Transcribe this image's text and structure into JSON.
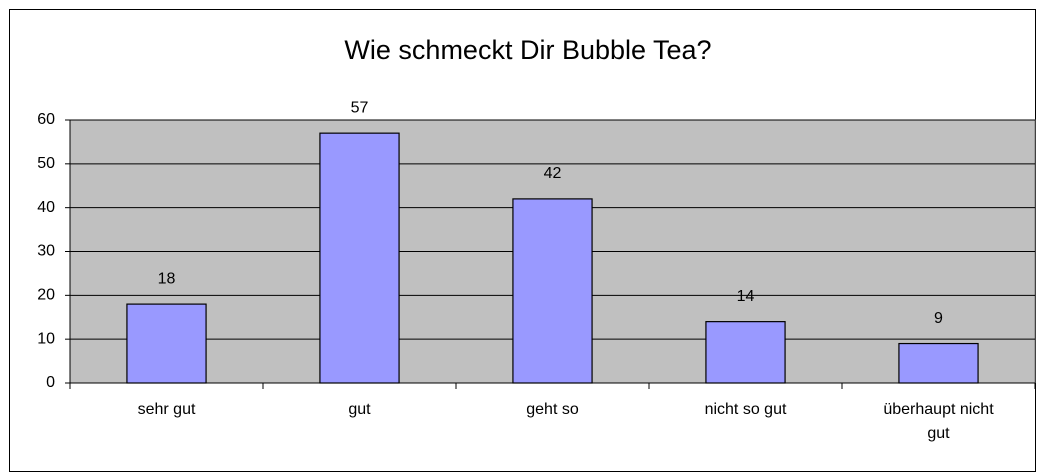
{
  "chart_data": {
    "type": "bar",
    "title": "Wie schmeckt Dir Bubble Tea?",
    "categories": [
      "sehr gut",
      "gut",
      "geht so",
      "nicht so gut",
      "überhaupt nicht gut"
    ],
    "values": [
      18,
      57,
      42,
      14,
      9
    ],
    "color": "#9999ff",
    "ylim": [
      0,
      60
    ],
    "yticks": [
      0,
      10,
      20,
      30,
      40,
      50,
      60
    ],
    "grid": true
  }
}
